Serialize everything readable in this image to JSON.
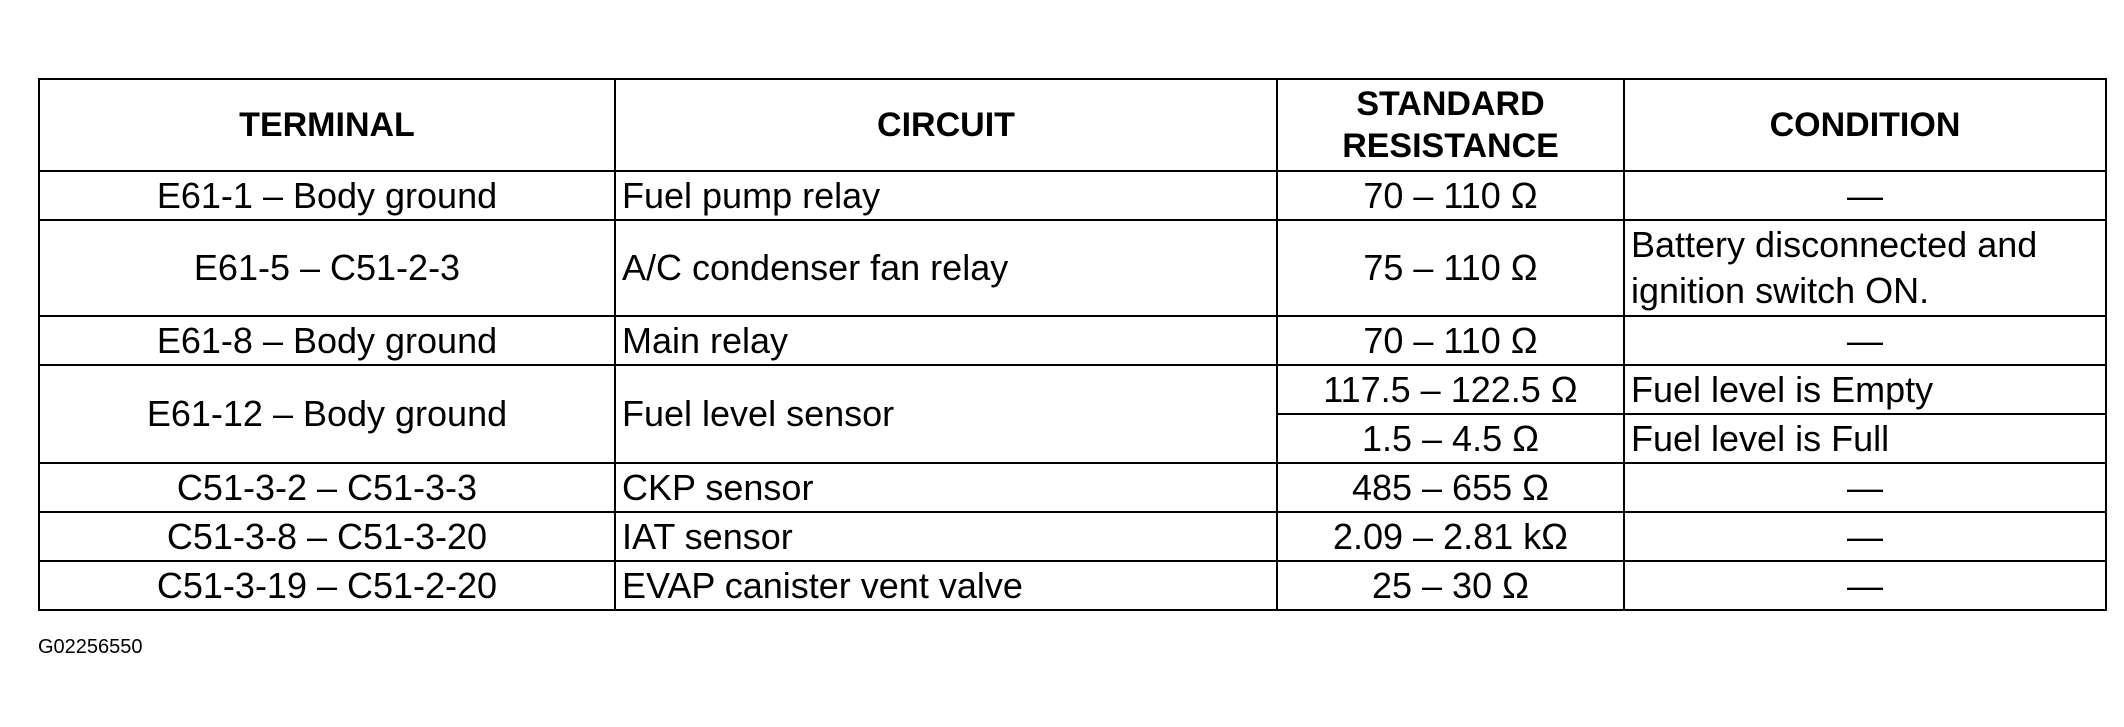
{
  "table": {
    "header": [
      "TERMINAL",
      "CIRCUIT",
      [
        "STANDARD",
        "RESISTANCE"
      ],
      "CONDITION"
    ],
    "rows": [
      [
        "E61-1 – Body ground",
        "Fuel pump relay",
        "70 – 110 Ω",
        "—"
      ],
      [
        "E61-5 – C51-2-3",
        "A/C condenser fan relay",
        "75 – 110 Ω",
        "Battery disconnected and ignition switch ON."
      ],
      [
        "E61-8 – Body ground",
        "Main relay",
        "70 – 110 Ω",
        "—"
      ],
      [
        "E61-12 – Body ground",
        "Fuel level sensor",
        "117.5 – 122.5 Ω",
        "Fuel level is Empty"
      ],
      [
        "1.5 – 4.5 Ω",
        "Fuel level is Full"
      ],
      [
        "C51-3-2 – C51-3-3",
        "CKP sensor",
        "485 – 655 Ω",
        "—"
      ],
      [
        "C51-3-8 – C51-3-20",
        "IAT sensor",
        "2.09 – 2.81 kΩ",
        "—"
      ],
      [
        "C51-3-19 – C51-2-20",
        "EVAP canister vent valve",
        "25 – 30 Ω",
        "—"
      ]
    ]
  },
  "caption": "G02256550"
}
